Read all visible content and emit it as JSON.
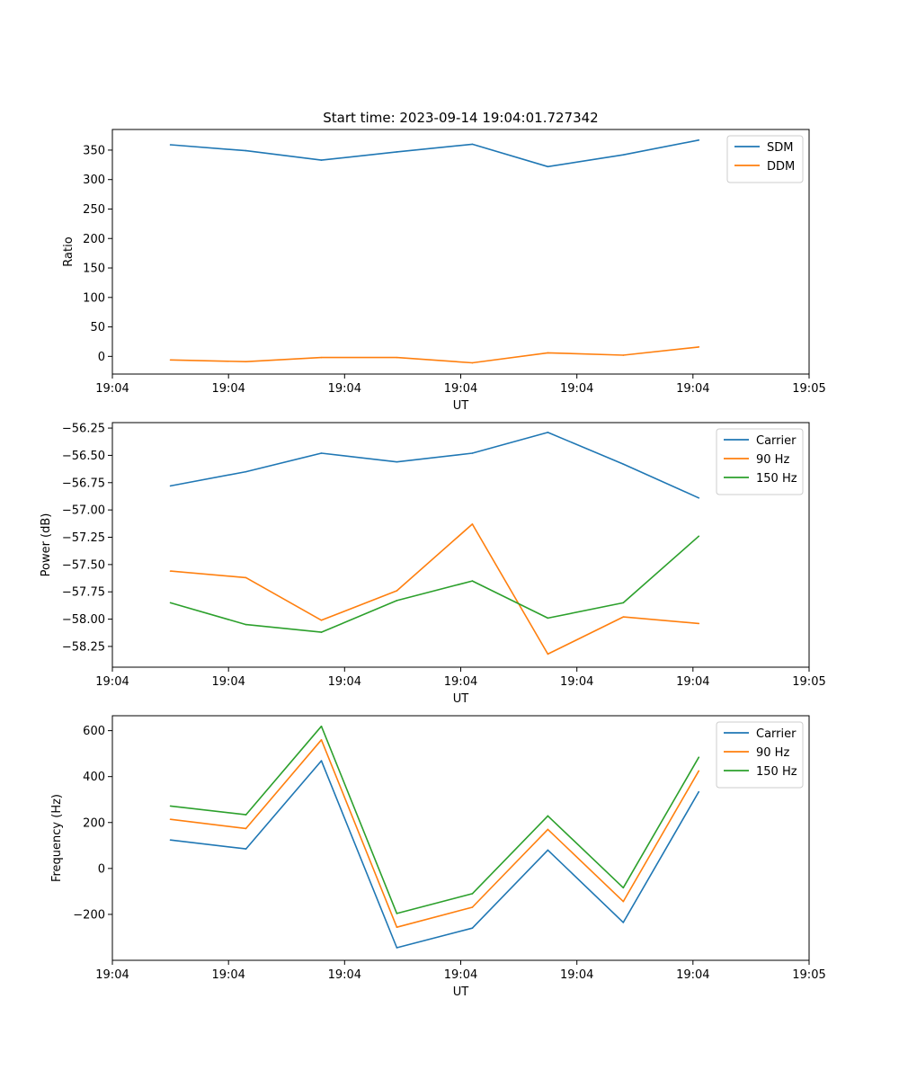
{
  "chart_data": [
    {
      "type": "line",
      "title": "Start time: 2023-09-14 19:04:01.727342",
      "xlabel": "UT",
      "ylabel": "Ratio",
      "xlim": [
        0,
        1
      ],
      "x_tick_positions": [
        0,
        0.1667,
        0.3333,
        0.5,
        0.6667,
        0.8333,
        1.0
      ],
      "x_tick_labels": [
        "19:04",
        "19:04",
        "19:04",
        "19:04",
        "19:04",
        "19:04",
        "19:05"
      ],
      "x": [
        0.0833,
        0.1917,
        0.3,
        0.4083,
        0.5167,
        0.625,
        0.7333,
        0.8417
      ],
      "ylim": [
        -30,
        385
      ],
      "y_ticks": [
        0,
        50,
        100,
        150,
        200,
        250,
        300,
        350
      ],
      "y_tick_labels": [
        "0",
        "50",
        "100",
        "150",
        "200",
        "250",
        "300",
        "350"
      ],
      "legend_position": "top-right",
      "series": [
        {
          "name": "SDM",
          "color": "#1f77b4",
          "values": [
            359,
            349,
            333,
            347,
            360,
            322,
            342,
            367
          ]
        },
        {
          "name": "DDM",
          "color": "#ff7f0e",
          "values": [
            -6,
            -9,
            -2,
            -2,
            -11,
            6,
            2,
            16
          ]
        }
      ]
    },
    {
      "type": "line",
      "title": "",
      "xlabel": "UT",
      "ylabel": "Power (dB)",
      "xlim": [
        0,
        1
      ],
      "x_tick_positions": [
        0,
        0.1667,
        0.3333,
        0.5,
        0.6667,
        0.8333,
        1.0
      ],
      "x_tick_labels": [
        "19:04",
        "19:04",
        "19:04",
        "19:04",
        "19:04",
        "19:04",
        "19:05"
      ],
      "x": [
        0.0833,
        0.1917,
        0.3,
        0.4083,
        0.5167,
        0.625,
        0.7333,
        0.8417
      ],
      "ylim": [
        -58.44,
        -56.2
      ],
      "y_ticks": [
        -58.25,
        -58.0,
        -57.75,
        -57.5,
        -57.25,
        -57.0,
        -56.75,
        -56.5,
        -56.25
      ],
      "y_tick_labels": [
        "−58.25",
        "−58.00",
        "−57.75",
        "−57.50",
        "−57.25",
        "−57.00",
        "−56.75",
        "−56.50",
        "−56.25"
      ],
      "legend_position": "top-right",
      "series": [
        {
          "name": "Carrier",
          "color": "#1f77b4",
          "values": [
            -56.78,
            -56.65,
            -56.48,
            -56.56,
            -56.48,
            -56.29,
            -56.58,
            -56.89
          ]
        },
        {
          "name": "90 Hz",
          "color": "#ff7f0e",
          "values": [
            -57.56,
            -57.62,
            -58.01,
            -57.74,
            -57.13,
            -58.32,
            -57.98,
            -58.04
          ]
        },
        {
          "name": "150 Hz",
          "color": "#2ca02c",
          "values": [
            -57.85,
            -58.05,
            -58.12,
            -57.83,
            -57.65,
            -57.99,
            -57.85,
            -57.24
          ]
        }
      ]
    },
    {
      "type": "line",
      "title": "",
      "xlabel": "UT",
      "ylabel": "Frequency (Hz)",
      "xlim": [
        0,
        1
      ],
      "x_tick_positions": [
        0,
        0.1667,
        0.3333,
        0.5,
        0.6667,
        0.8333,
        1.0
      ],
      "x_tick_labels": [
        "19:04",
        "19:04",
        "19:04",
        "19:04",
        "19:04",
        "19:04",
        "19:05"
      ],
      "x": [
        0.0833,
        0.1917,
        0.3,
        0.4083,
        0.5167,
        0.625,
        0.7333,
        0.8417
      ],
      "ylim": [
        -400,
        665
      ],
      "y_ticks": [
        -200,
        0,
        200,
        400,
        600
      ],
      "y_tick_labels": [
        "−200",
        "0",
        "200",
        "400",
        "600"
      ],
      "legend_position": "top-right",
      "series": [
        {
          "name": "Carrier",
          "color": "#1f77b4",
          "values": [
            124,
            85,
            469,
            -345,
            -260,
            80,
            -235,
            334
          ]
        },
        {
          "name": "90 Hz",
          "color": "#ff7f0e",
          "values": [
            214,
            174,
            560,
            -256,
            -169,
            170,
            -144,
            425
          ]
        },
        {
          "name": "150 Hz",
          "color": "#2ca02c",
          "values": [
            272,
            234,
            619,
            -196,
            -110,
            229,
            -84,
            484
          ]
        }
      ]
    }
  ]
}
